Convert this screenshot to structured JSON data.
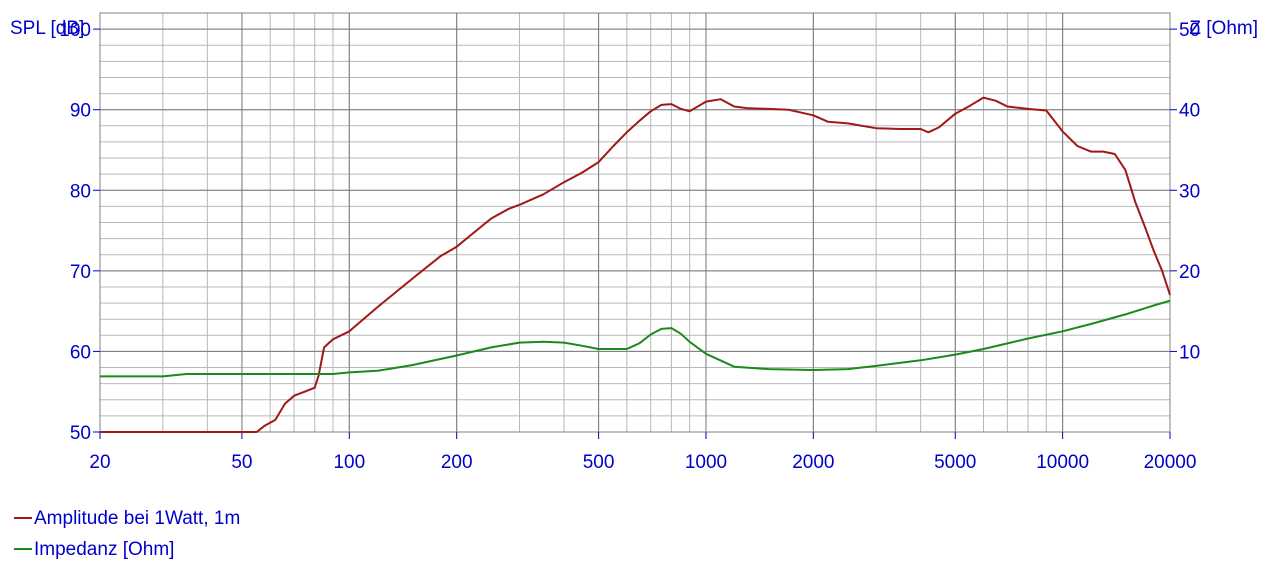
{
  "chart_data": {
    "type": "line",
    "title": "",
    "xlabel": "",
    "ylabel_left": "SPL [dB]",
    "ylabel_right": "Z [Ohm]",
    "x_scale": "log",
    "xlim": [
      20,
      20000
    ],
    "ylim_left": [
      50,
      102
    ],
    "ylim_right": [
      0,
      52
    ],
    "x_ticks": [
      20,
      50,
      100,
      200,
      500,
      1000,
      2000,
      5000,
      10000,
      20000
    ],
    "y_ticks_left": [
      50,
      60,
      70,
      80,
      90,
      100
    ],
    "y_ticks_right": [
      10,
      20,
      30,
      40,
      50
    ],
    "grid": true,
    "legend_position": "bottom-left",
    "colors": {
      "spl": "#a01818",
      "impedance": "#1a8a1a",
      "axis_text": "#0000cc",
      "grid": "#b8b8b8"
    },
    "series": [
      {
        "name": "Amplitude bei 1Watt, 1m",
        "axis": "left",
        "x": [
          20,
          30,
          40,
          50,
          55,
          58,
          62,
          66,
          70,
          75,
          80,
          82,
          85,
          90,
          100,
          120,
          150,
          180,
          200,
          220,
          250,
          280,
          300,
          350,
          400,
          450,
          500,
          550,
          600,
          650,
          700,
          750,
          800,
          850,
          900,
          1000,
          1100,
          1200,
          1300,
          1500,
          1700,
          2000,
          2200,
          2500,
          3000,
          3500,
          4000,
          4200,
          4500,
          5000,
          5500,
          6000,
          6500,
          7000,
          8000,
          9000,
          10000,
          11000,
          12000,
          13000,
          14000,
          15000,
          16000,
          17000,
          18000,
          19000,
          20000
        ],
        "values": [
          50,
          50,
          50,
          50,
          50,
          50.8,
          51.5,
          53.5,
          54.5,
          55,
          55.5,
          57,
          60.5,
          61.5,
          62.5,
          65.5,
          69,
          71.8,
          73,
          74.5,
          76.5,
          77.7,
          78.2,
          79.5,
          81,
          82.2,
          83.5,
          85.5,
          87.2,
          88.6,
          89.8,
          90.6,
          90.7,
          90.1,
          89.8,
          91,
          91.3,
          90.4,
          90.2,
          90.1,
          90,
          89.3,
          88.5,
          88.3,
          87.7,
          87.6,
          87.6,
          87.2,
          87.8,
          89.5,
          90.5,
          91.5,
          91.1,
          90.4,
          90.1,
          89.9,
          87.3,
          85.5,
          84.8,
          84.8,
          84.5,
          82.5,
          78.5,
          75.5,
          72.5,
          70,
          67
        ]
      },
      {
        "name": "Impedanz [Ohm]",
        "axis": "right",
        "x": [
          20,
          30,
          35,
          40,
          50,
          60,
          70,
          80,
          90,
          100,
          120,
          150,
          200,
          250,
          300,
          350,
          400,
          450,
          500,
          550,
          600,
          650,
          700,
          750,
          800,
          850,
          900,
          1000,
          1200,
          1500,
          2000,
          2500,
          3000,
          4000,
          5000,
          6000,
          7000,
          8000,
          10000,
          12000,
          15000,
          18000,
          20000
        ],
        "values": [
          6.9,
          6.9,
          7.2,
          7.2,
          7.2,
          7.2,
          7.2,
          7.2,
          7.2,
          7.4,
          7.6,
          8.3,
          9.5,
          10.5,
          11.1,
          11.2,
          11.1,
          10.7,
          10.3,
          10.3,
          10.3,
          11,
          12.1,
          12.8,
          12.9,
          12.2,
          11.2,
          9.7,
          8.1,
          7.8,
          7.7,
          7.8,
          8.2,
          8.9,
          9.6,
          10.3,
          11,
          11.6,
          12.5,
          13.4,
          14.6,
          15.7,
          16.3
        ]
      }
    ]
  }
}
